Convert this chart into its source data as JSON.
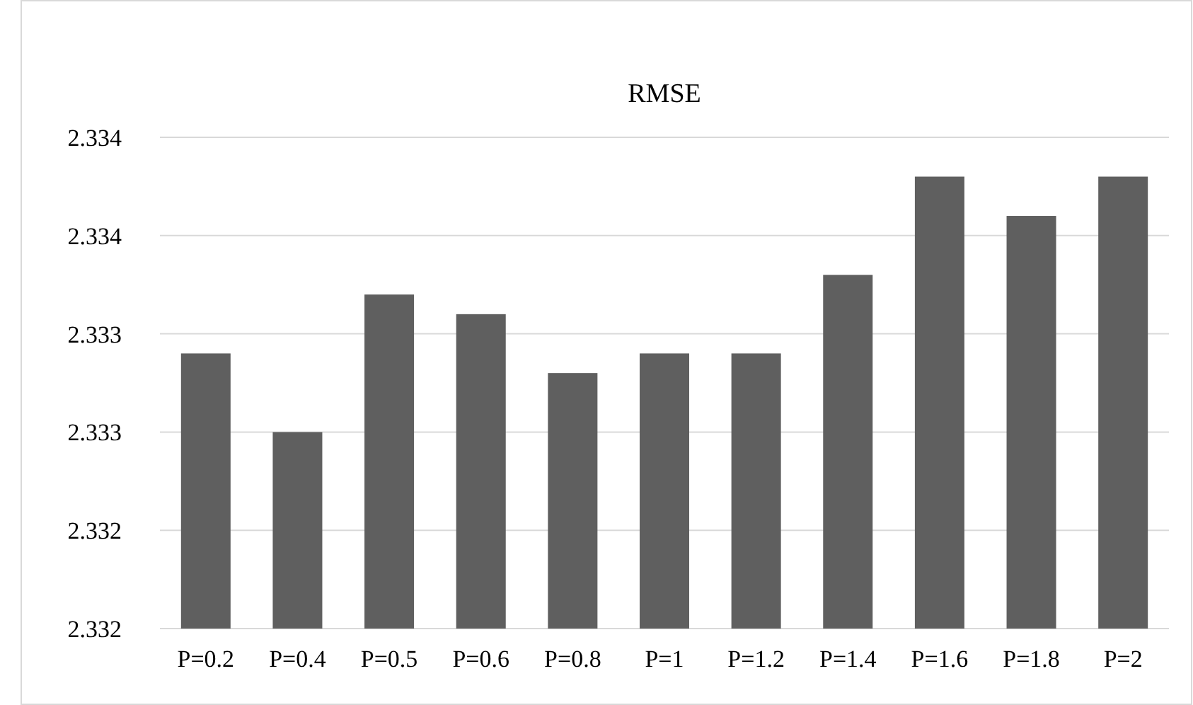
{
  "chart_data": {
    "type": "bar",
    "title": "RMSE",
    "categories": [
      "P=0.2",
      "P=0.4",
      "P=0.5",
      "P=0.6",
      "P=0.8",
      "P=1",
      "P=1.2",
      "P=1.4",
      "P=1.6",
      "P=1.8",
      "P=2"
    ],
    "values": [
      2.3334,
      2.333,
      2.3337,
      2.3336,
      2.3333,
      2.3334,
      2.3334,
      2.3338,
      2.3343,
      2.3341,
      2.3343
    ],
    "color": "#5f5f5f",
    "ylim": [
      2.332,
      2.3345
    ],
    "yticks": [
      {
        "value": 2.332,
        "label": "2.332"
      },
      {
        "value": 2.3325,
        "label": "2.332"
      },
      {
        "value": 2.333,
        "label": "2.333"
      },
      {
        "value": 2.3335,
        "label": "2.333"
      },
      {
        "value": 2.334,
        "label": "2.334"
      },
      {
        "value": 2.3345,
        "label": "2.334"
      }
    ],
    "grid": "y"
  }
}
